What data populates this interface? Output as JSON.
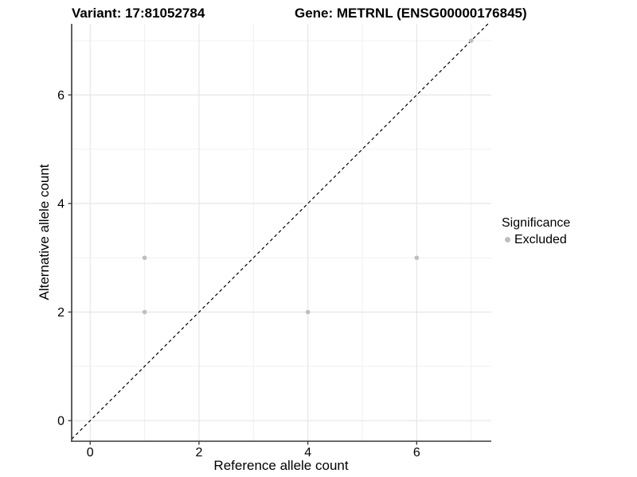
{
  "chart_data": {
    "type": "scatter",
    "title_left": "Variant: 17:81052784",
    "title_right": "Gene: METRNL (ENSG00000176845)",
    "xlabel": "Reference allele count",
    "ylabel": "Alternative allele count",
    "x_ticks": [
      0,
      2,
      4,
      6
    ],
    "y_ticks": [
      0,
      2,
      4,
      6
    ],
    "x_minor": [
      1,
      3,
      5,
      7
    ],
    "y_minor": [
      1,
      3,
      5,
      7
    ],
    "xlim": [
      -0.34,
      7.37
    ],
    "ylim": [
      -0.38,
      7.31
    ],
    "grid": true,
    "legend_position": "right",
    "reference_line": {
      "type": "identity y=x",
      "style": "dashed",
      "color": "#000000"
    },
    "legend": {
      "title": "Significance",
      "entries": [
        {
          "label": "Excluded",
          "color": "#bebebe"
        }
      ]
    },
    "series": [
      {
        "name": "Excluded",
        "color": "#bebebe",
        "points": [
          {
            "x": 1,
            "y": 2
          },
          {
            "x": 1,
            "y": 3
          },
          {
            "x": 4,
            "y": 2
          },
          {
            "x": 6,
            "y": 3
          },
          {
            "x": 7,
            "y": 7
          }
        ]
      }
    ],
    "colors": {
      "grid_major": "#e4e4e4",
      "grid_minor": "#f0f0f0",
      "axis": "#383838",
      "tick": "#383838",
      "text": "#000000",
      "point": "#bebebe",
      "background": "#ffffff"
    }
  }
}
